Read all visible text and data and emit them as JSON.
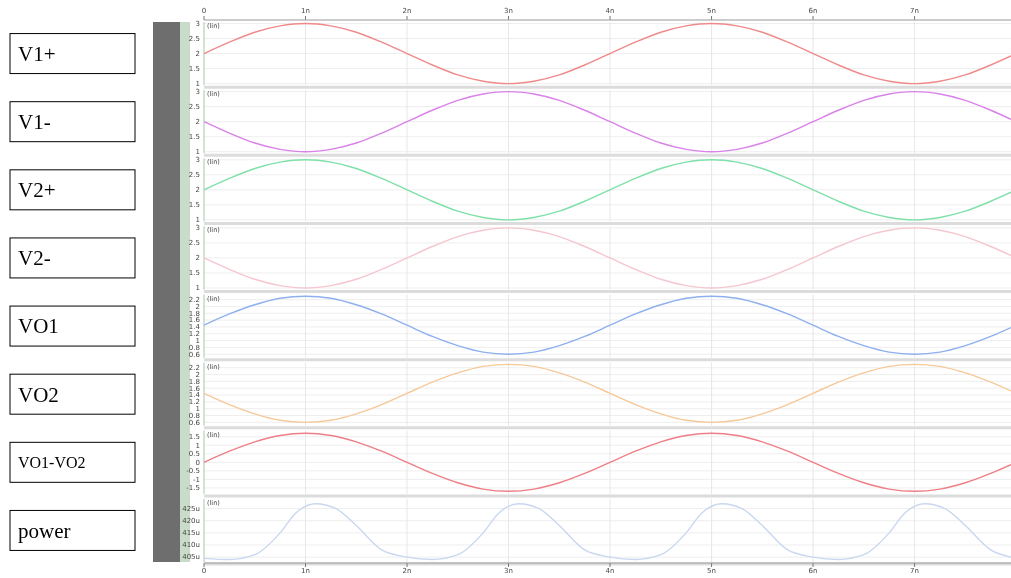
{
  "chart_data": [
    {
      "type": "line",
      "ylabel": "V1+",
      "annotations": [
        "(lin)"
      ],
      "tick_labels": "y",
      "xlim": [
        0,
        7.95
      ],
      "xticks": [
        0,
        1,
        2,
        3,
        4,
        5,
        6,
        7
      ],
      "x2lim": [
        0,
        7.95
      ],
      "x2ticks": [
        0,
        {
          "value": 1,
          "label": "1n"
        },
        {
          "value": 2,
          "label": "2n"
        },
        {
          "value": 3,
          "label": "3n"
        },
        {
          "value": 4,
          "label": "4n"
        },
        {
          "value": 5,
          "label": "5n"
        },
        {
          "value": 6,
          "label": "6n"
        },
        {
          "value": 7,
          "label": "7n"
        }
      ],
      "ylim": [
        0.95,
        3.05
      ],
      "yticks": [
        1,
        1.5,
        2,
        2.5,
        3
      ],
      "grid": true,
      "color": "#ef8a8a",
      "x": [
        0,
        0.25,
        0.5,
        0.75,
        1,
        1.25,
        1.5,
        1.75,
        2,
        2.25,
        2.5,
        2.75,
        3,
        3.25,
        3.5,
        3.75,
        4,
        4.25,
        4.5,
        4.75,
        5,
        5.25,
        5.5,
        5.75,
        6,
        6.25,
        6.5,
        6.75,
        7,
        7.25,
        7.5,
        7.75,
        7.95
      ],
      "values": [
        2,
        2.38,
        2.71,
        2.92,
        3,
        2.92,
        2.71,
        2.38,
        2,
        1.62,
        1.29,
        1.08,
        1,
        1.08,
        1.29,
        1.62,
        2,
        2.38,
        2.71,
        2.92,
        3,
        2.92,
        2.71,
        2.38,
        2,
        1.62,
        1.29,
        1.08,
        1,
        1.08,
        1.29,
        1.62,
        1.92
      ]
    },
    {
      "type": "line",
      "ylabel": "V1-",
      "annotations": [
        "(lin)"
      ],
      "tick_labels": "y",
      "xlim": [
        0,
        7.95
      ],
      "xticks": [
        0,
        1,
        2,
        3,
        4,
        5,
        6,
        7
      ],
      "ylim": [
        0.95,
        3.05
      ],
      "yticks": [
        1,
        1.5,
        2,
        2.5,
        3
      ],
      "grid": true,
      "color": "#d982e8",
      "x": [
        0,
        0.25,
        0.5,
        0.75,
        1,
        1.25,
        1.5,
        1.75,
        2,
        2.25,
        2.5,
        2.75,
        3,
        3.25,
        3.5,
        3.75,
        4,
        4.25,
        4.5,
        4.75,
        5,
        5.25,
        5.5,
        5.75,
        6,
        6.25,
        6.5,
        6.75,
        7,
        7.25,
        7.5,
        7.75,
        7.95
      ],
      "values": [
        2,
        1.62,
        1.29,
        1.08,
        1,
        1.08,
        1.29,
        1.62,
        2,
        2.38,
        2.71,
        2.92,
        3,
        2.92,
        2.71,
        2.38,
        2,
        1.62,
        1.29,
        1.08,
        1,
        1.08,
        1.29,
        1.62,
        2,
        2.38,
        2.71,
        2.92,
        3,
        2.92,
        2.71,
        2.38,
        2.08
      ]
    },
    {
      "type": "line",
      "ylabel": "V2+",
      "annotations": [
        "(lin)"
      ],
      "tick_labels": "y",
      "xlim": [
        0,
        7.95
      ],
      "xticks": [
        0,
        1,
        2,
        3,
        4,
        5,
        6,
        7
      ],
      "ylim": [
        0.95,
        3.05
      ],
      "yticks": [
        1,
        1.5,
        2,
        2.5,
        3
      ],
      "grid": true,
      "color": "#7fe0a8",
      "x": [
        0,
        0.25,
        0.5,
        0.75,
        1,
        1.25,
        1.5,
        1.75,
        2,
        2.25,
        2.5,
        2.75,
        3,
        3.25,
        3.5,
        3.75,
        4,
        4.25,
        4.5,
        4.75,
        5,
        5.25,
        5.5,
        5.75,
        6,
        6.25,
        6.5,
        6.75,
        7,
        7.25,
        7.5,
        7.75,
        7.95
      ],
      "values": [
        2,
        2.38,
        2.71,
        2.92,
        3,
        2.92,
        2.71,
        2.38,
        2,
        1.62,
        1.29,
        1.08,
        1,
        1.08,
        1.29,
        1.62,
        2,
        2.38,
        2.71,
        2.92,
        3,
        2.92,
        2.71,
        2.38,
        2,
        1.62,
        1.29,
        1.08,
        1,
        1.08,
        1.29,
        1.62,
        1.92
      ]
    },
    {
      "type": "line",
      "ylabel": "V2-",
      "annotations": [
        "(lin)"
      ],
      "tick_labels": "y",
      "xlim": [
        0,
        7.95
      ],
      "xticks": [
        0,
        1,
        2,
        3,
        4,
        5,
        6,
        7
      ],
      "ylim": [
        0.95,
        3.05
      ],
      "yticks": [
        1,
        1.5,
        2,
        2.5,
        3
      ],
      "grid": true,
      "color": "#f5c6cf",
      "x": [
        0,
        0.25,
        0.5,
        0.75,
        1,
        1.25,
        1.5,
        1.75,
        2,
        2.25,
        2.5,
        2.75,
        3,
        3.25,
        3.5,
        3.75,
        4,
        4.25,
        4.5,
        4.75,
        5,
        5.25,
        5.5,
        5.75,
        6,
        6.25,
        6.5,
        6.75,
        7,
        7.25,
        7.5,
        7.75,
        7.95
      ],
      "values": [
        2,
        1.62,
        1.29,
        1.08,
        1,
        1.08,
        1.29,
        1.62,
        2,
        2.38,
        2.71,
        2.92,
        3,
        2.92,
        2.71,
        2.38,
        2,
        1.62,
        1.29,
        1.08,
        1,
        1.08,
        1.29,
        1.62,
        2,
        2.38,
        2.71,
        2.92,
        3,
        2.92,
        2.71,
        2.38,
        2.08
      ]
    },
    {
      "type": "line",
      "ylabel": "VO1",
      "annotations": [
        "(lin)"
      ],
      "tick_labels": "y",
      "xlim": [
        0,
        7.95
      ],
      "xticks": [
        0,
        1,
        2,
        3,
        4,
        5,
        6,
        7
      ],
      "ylim": [
        0.5,
        2.35
      ],
      "yticks": [
        0.6,
        0.8,
        1,
        1.2,
        1.4,
        1.6,
        1.8,
        2,
        2.2
      ],
      "grid": true,
      "color": "#8fb0ee",
      "x": [
        0,
        0.25,
        0.5,
        0.75,
        1,
        1.25,
        1.5,
        1.75,
        2,
        2.25,
        2.5,
        2.75,
        3,
        3.25,
        3.5,
        3.75,
        4,
        4.25,
        4.5,
        4.75,
        5,
        5.25,
        5.5,
        5.75,
        6,
        6.25,
        6.5,
        6.75,
        7,
        7.25,
        7.5,
        7.75,
        7.95
      ],
      "values": [
        1.45,
        1.78,
        2.05,
        2.24,
        2.3,
        2.24,
        2.05,
        1.78,
        1.45,
        1.12,
        0.85,
        0.66,
        0.6,
        0.66,
        0.85,
        1.12,
        1.45,
        1.78,
        2.05,
        2.24,
        2.3,
        2.24,
        2.05,
        1.78,
        1.45,
        1.12,
        0.85,
        0.66,
        0.6,
        0.66,
        0.85,
        1.12,
        1.38
      ]
    },
    {
      "type": "line",
      "ylabel": "VO2",
      "annotations": [
        "(lin)"
      ],
      "tick_labels": "y",
      "xlim": [
        0,
        7.95
      ],
      "xticks": [
        0,
        1,
        2,
        3,
        4,
        5,
        6,
        7
      ],
      "ylim": [
        0.5,
        2.35
      ],
      "yticks": [
        0.6,
        0.8,
        1,
        1.2,
        1.4,
        1.6,
        1.8,
        2,
        2.2
      ],
      "grid": true,
      "color": "#f5c99a",
      "x": [
        0,
        0.25,
        0.5,
        0.75,
        1,
        1.25,
        1.5,
        1.75,
        2,
        2.25,
        2.5,
        2.75,
        3,
        3.25,
        3.5,
        3.75,
        4,
        4.25,
        4.5,
        4.75,
        5,
        5.25,
        5.5,
        5.75,
        6,
        6.25,
        6.5,
        6.75,
        7,
        7.25,
        7.5,
        7.75,
        7.95
      ],
      "values": [
        1.45,
        1.12,
        0.85,
        0.66,
        0.6,
        0.66,
        0.85,
        1.12,
        1.45,
        1.78,
        2.05,
        2.24,
        2.3,
        2.24,
        2.05,
        1.78,
        1.45,
        1.12,
        0.85,
        0.66,
        0.6,
        0.66,
        0.85,
        1.12,
        1.45,
        1.78,
        2.05,
        2.24,
        2.3,
        2.24,
        2.05,
        1.78,
        1.52
      ]
    },
    {
      "type": "line",
      "ylabel": "VO1-VO2",
      "annotations": [
        "(lin)"
      ],
      "tick_labels": "y",
      "xlim": [
        0,
        7.95
      ],
      "xticks": [
        0,
        1,
        2,
        3,
        4,
        5,
        6,
        7
      ],
      "ylim": [
        -1.85,
        1.85
      ],
      "yticks": [
        -1.5,
        -1,
        -0.5,
        0,
        0.5,
        1,
        1.5
      ],
      "grid": true,
      "color": "#ee7f86",
      "x": [
        0,
        0.25,
        0.5,
        0.75,
        1,
        1.25,
        1.5,
        1.75,
        2,
        2.25,
        2.5,
        2.75,
        3,
        3.25,
        3.5,
        3.75,
        4,
        4.25,
        4.5,
        4.75,
        5,
        5.25,
        5.5,
        5.75,
        6,
        6.25,
        6.5,
        6.75,
        7,
        7.25,
        7.5,
        7.75,
        7.95
      ],
      "values": [
        0,
        0.65,
        1.2,
        1.57,
        1.7,
        1.57,
        1.2,
        0.65,
        0,
        -0.65,
        -1.2,
        -1.57,
        -1.7,
        -1.57,
        -1.2,
        -0.65,
        0,
        0.65,
        1.2,
        1.57,
        1.7,
        1.57,
        1.2,
        0.65,
        0,
        -0.65,
        -1.2,
        -1.57,
        -1.7,
        -1.57,
        -1.2,
        -0.65,
        -0.14
      ]
    },
    {
      "type": "line",
      "ylabel": "power",
      "annotations": [
        "(lin)"
      ],
      "xlim": [
        0,
        7.95
      ],
      "xticks": [
        0,
        {
          "value": 1,
          "label": "1n"
        },
        {
          "value": 2,
          "label": "2n"
        },
        {
          "value": 3,
          "label": "3n"
        },
        {
          "value": 4,
          "label": "4n"
        },
        {
          "value": 5,
          "label": "5n"
        },
        {
          "value": 6,
          "label": "6n"
        },
        {
          "value": 7,
          "label": "7n"
        }
      ],
      "ylim": [
        403,
        429
      ],
      "yticks": [
        {
          "value": 405,
          "label": "405u"
        },
        {
          "value": 410,
          "label": "410u"
        },
        {
          "value": 415,
          "label": "415u"
        },
        {
          "value": 420,
          "label": "420u"
        },
        {
          "value": 425,
          "label": "425u"
        }
      ],
      "grid": true,
      "color": "#c9d7f0",
      "x": [
        0,
        0.25,
        0.5,
        0.75,
        0.9,
        1.1,
        1.3,
        1.5,
        1.75,
        2,
        2.25,
        2.5,
        2.75,
        2.9,
        3.1,
        3.3,
        3.5,
        3.75,
        4,
        4.25,
        4.5,
        4.75,
        4.9,
        5.1,
        5.3,
        5.5,
        5.75,
        6,
        6.25,
        6.5,
        6.75,
        6.9,
        7.1,
        7.3,
        7.5,
        7.75,
        7.95
      ],
      "values": [
        404.5,
        404,
        406,
        415,
        423,
        427,
        425,
        418,
        408,
        405,
        404,
        406,
        415,
        423,
        427,
        425,
        418,
        408,
        405,
        404,
        406,
        415,
        423,
        427,
        425,
        418,
        408,
        405,
        404,
        406,
        415,
        423,
        427,
        425,
        418,
        408,
        405
      ]
    }
  ]
}
